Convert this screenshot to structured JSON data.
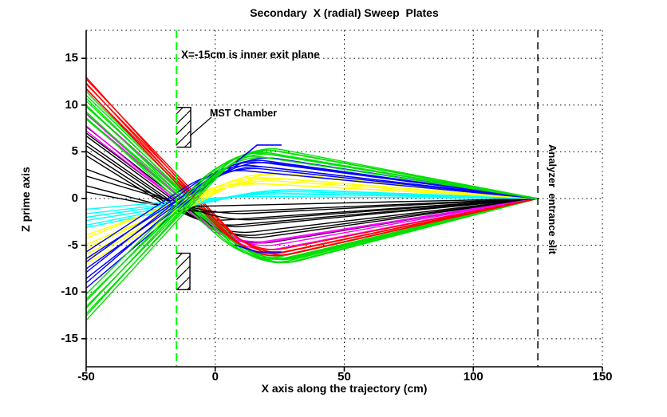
{
  "title": "Secondary  X (radial) Sweep  Plates",
  "axes": {
    "xlabel": "X axis along the trajectory (cm)",
    "ylabel": "Z prime axis",
    "xlim": [
      -50,
      150
    ],
    "ylim": [
      -18,
      18
    ],
    "xticks": [
      -50,
      0,
      50,
      100,
      150
    ],
    "yticks": [
      -15,
      -10,
      -5,
      0,
      5,
      10,
      15
    ]
  },
  "annotations": {
    "exit_plane": "X=-15cm is inner exit plane",
    "mst_chamber": "MST Chamber",
    "analyzer_slit": "Analyzer  entrance slit"
  },
  "chart_data": {
    "type": "line",
    "title": "Secondary  X (radial) Sweep  Plates",
    "xlabel": "X axis along the trajectory (cm)",
    "ylabel": "Z prime axis",
    "xlim": [
      -50,
      150
    ],
    "ylim": [
      -18,
      18
    ],
    "grid": true,
    "focus_point": {
      "x": 125,
      "z": 0
    },
    "exit_plane_x": -15,
    "analyzer_x": 125,
    "colors": {
      "exit_plane_line": "#00ff00",
      "analyzer_line": "#000000",
      "plates": "#0000ff",
      "chamber": "#000000",
      "grid": "#000000"
    },
    "plates": {
      "top": [
        [
          8.1,
          3.9
        ],
        [
          16.2,
          5.72
        ],
        [
          25.7,
          5.72
        ]
      ],
      "bottom": [
        [
          7.5,
          -4.95
        ],
        [
          16.2,
          -5.72
        ],
        [
          25.7,
          -5.72
        ]
      ]
    },
    "chambers": [
      {
        "x": [
          -15,
          -9.5
        ],
        "z": [
          5.5,
          9.75
        ]
      },
      {
        "x": [
          -15,
          -9.8
        ],
        "z": [
          -5.85,
          -9.75
        ]
      }
    ],
    "leader_line": [
      [
        -1.5,
        8.7
      ],
      [
        -9.8,
        6.7
      ]
    ],
    "ray_groups": [
      {
        "name": "descending-black",
        "color": "#000000",
        "count": 7,
        "z0": [
          4.6,
          7.6
        ],
        "slope": [
          -0.172,
          -0.215
        ],
        "exit_z30": [
          -1.8,
          -4.2
        ]
      },
      {
        "name": "descending-magenta",
        "color": "#ff00ff",
        "count": 5,
        "z0": [
          7.2,
          9.8
        ],
        "slope": [
          -0.218,
          -0.25
        ],
        "exit_z30": [
          -4.0,
          -5.3
        ]
      },
      {
        "name": "descending-green",
        "color": "#00e000",
        "count": 10,
        "z0": [
          8.4,
          11.4
        ],
        "slope": [
          -0.238,
          -0.275
        ],
        "exit_z30": [
          -5.9,
          -6.9
        ]
      },
      {
        "name": "descending-red",
        "color": "#ff0000",
        "count": 6,
        "z0": [
          11.6,
          13.0
        ],
        "slope": [
          -0.282,
          -0.3
        ],
        "exit_z30": [
          -5.3,
          -5.9
        ]
      },
      {
        "name": "flat-black",
        "color": "#000000",
        "count": 4,
        "z0": [
          0.6,
          3.2
        ],
        "slope": [
          -0.055,
          -0.1
        ],
        "exit_z30": [
          -0.6,
          -1.9
        ]
      },
      {
        "name": "ascending-cyan",
        "color": "#00ffff",
        "count": 6,
        "z0": [
          -3.2,
          -1.2
        ],
        "slope": [
          0.06,
          0.025
        ],
        "exit_z30": [
          1.05,
          0.25
        ]
      },
      {
        "name": "ascending-yellow",
        "color": "#ffff00",
        "count": 7,
        "z0": [
          -7.0,
          -3.8
        ],
        "slope": [
          0.155,
          0.1
        ],
        "exit_z30": [
          2.6,
          1.3
        ]
      },
      {
        "name": "ascending-blue",
        "color": "#0000ff",
        "count": 8,
        "z0": [
          -9.6,
          -5.8
        ],
        "slope": [
          0.24,
          0.175
        ],
        "exit_z30": [
          3.9,
          2.6
        ]
      },
      {
        "name": "ascending-green",
        "color": "#00e000",
        "count": 8,
        "z0": [
          -13.0,
          -10.3
        ],
        "slope": [
          0.305,
          0.27
        ],
        "exit_z30": [
          5.0,
          3.9
        ]
      }
    ]
  }
}
